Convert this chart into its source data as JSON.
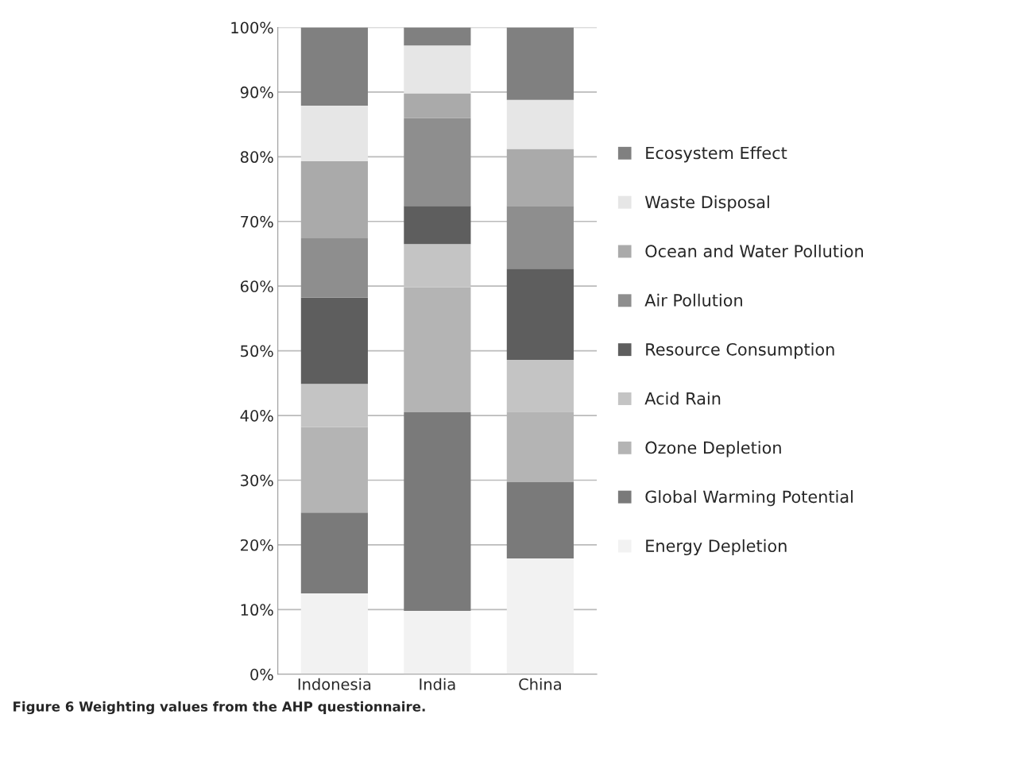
{
  "chart_data": {
    "type": "bar",
    "stacked": true,
    "categories": [
      "Indonesia",
      "India",
      "China"
    ],
    "series": [
      {
        "name": "Energy Depletion",
        "color": "#f2f2f2",
        "values": [
          12.5,
          9.8,
          17.9
        ]
      },
      {
        "name": "Global Warming Potential",
        "color": "#7a7a7a",
        "values": [
          12.5,
          30.7,
          11.8
        ]
      },
      {
        "name": "Ozone Depletion",
        "color": "#b4b4b4",
        "values": [
          13.2,
          19.3,
          10.9
        ]
      },
      {
        "name": "Acid Rain",
        "color": "#c4c4c4",
        "values": [
          6.7,
          6.7,
          8.0
        ]
      },
      {
        "name": "Resource Consumption",
        "color": "#5e5e5e",
        "values": [
          13.3,
          5.9,
          14.1
        ]
      },
      {
        "name": "Air Pollution",
        "color": "#8e8e8e",
        "values": [
          9.2,
          13.6,
          9.7
        ]
      },
      {
        "name": "Ocean and Water Pollution",
        "color": "#aaaaaa",
        "values": [
          11.9,
          3.8,
          8.8
        ]
      },
      {
        "name": "Waste Disposal",
        "color": "#e6e6e6",
        "values": [
          8.6,
          7.4,
          7.6
        ]
      },
      {
        "name": "Ecosystem Effect",
        "color": "#808080",
        "values": [
          12.1,
          2.8,
          11.2
        ]
      }
    ],
    "ylim": [
      0,
      100
    ],
    "yticks": [
      {
        "value": 0,
        "label": "0%"
      },
      {
        "value": 10,
        "label": "10%"
      },
      {
        "value": 20,
        "label": "20%"
      },
      {
        "value": 30,
        "label": "30%"
      },
      {
        "value": 40,
        "label": "40%"
      },
      {
        "value": 50,
        "label": "50%"
      },
      {
        "value": 60,
        "label": "60%"
      },
      {
        "value": 70,
        "label": "70%"
      },
      {
        "value": 80,
        "label": "80%"
      },
      {
        "value": 90,
        "label": "90%"
      },
      {
        "value": 100,
        "label": "100%"
      }
    ],
    "grid": "y",
    "legend": "right",
    "annotations": [
      "Figure 6 Weighting values from the AHP questionnaire."
    ]
  }
}
